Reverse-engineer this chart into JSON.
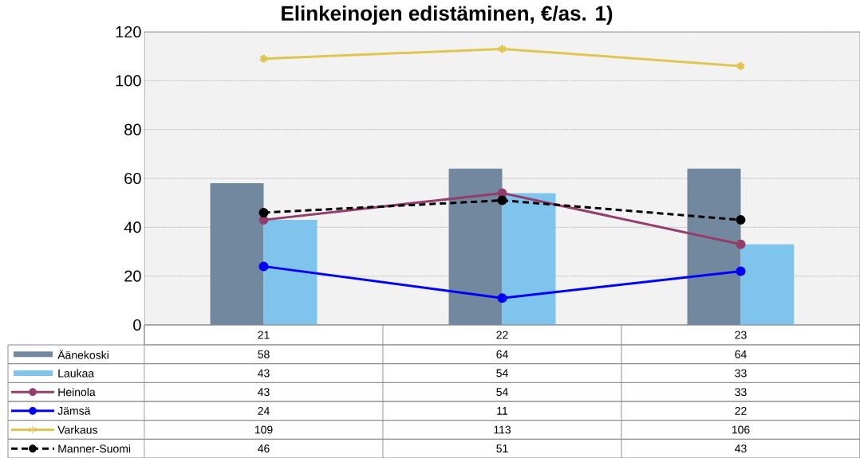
{
  "chart_data": {
    "type": "bar",
    "title": "Elinkeinojen edistäminen, €/as. 1)",
    "categories": [
      "21",
      "22",
      "23"
    ],
    "series": [
      {
        "name": "Äänekoski",
        "color": "#71889f",
        "values": [
          58,
          64,
          64
        ]
      },
      {
        "name": "Laukaa",
        "color": "#7fc4ec",
        "values": [
          43,
          54,
          33
        ]
      },
      {
        "name": "Heinola",
        "type": "line",
        "color": "#953d6b",
        "marker": "circle",
        "values": [
          43,
          54,
          33
        ]
      },
      {
        "name": "Jämsä",
        "type": "line",
        "color": "#0000ff",
        "marker": "circle",
        "values": [
          24,
          11,
          22
        ]
      },
      {
        "name": "Varkaus",
        "type": "line",
        "color": "#e0c651",
        "marker": "cross",
        "values": [
          109,
          113,
          106
        ]
      },
      {
        "name": "Manner-Suomi",
        "type": "line",
        "color": "#000000",
        "marker": "circle",
        "line_style": "dashed",
        "values": [
          46,
          51,
          43
        ]
      }
    ],
    "ylim": [
      0,
      120
    ],
    "yticks": [
      0,
      20,
      40,
      60,
      80,
      100,
      120
    ],
    "grid": "y",
    "legend": "bottom left",
    "data_labels": true
  }
}
